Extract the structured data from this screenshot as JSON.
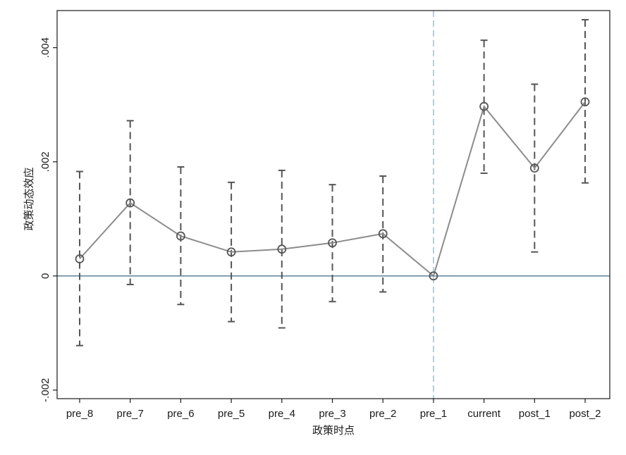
{
  "chart_data": {
    "type": "line",
    "title": "",
    "xlabel": "政策时点",
    "ylabel": "政策动态效应",
    "categories": [
      "pre_8",
      "pre_7",
      "pre_6",
      "pre_5",
      "pre_4",
      "pre_3",
      "pre_2",
      "pre_1",
      "current",
      "post_1",
      "post_2"
    ],
    "series": [
      {
        "values": [
          0.0003,
          0.00128,
          0.0007,
          0.00042,
          0.00047,
          0.00058,
          0.00074,
          0.0,
          0.00297,
          0.00189,
          0.00305
        ],
        "ci_lower": [
          -0.00122,
          -0.00015,
          -0.0005,
          -0.0008,
          -0.00091,
          -0.00045,
          -0.00028,
          0.0,
          0.0018,
          0.00042,
          0.00163
        ],
        "ci_upper": [
          0.00183,
          0.00272,
          0.00191,
          0.00164,
          0.00185,
          0.0016,
          0.00175,
          0.0,
          0.00413,
          0.00336,
          0.00449
        ]
      }
    ],
    "ylim": [
      -0.00215,
      0.00465
    ],
    "yticks": [
      -0.002,
      0,
      0.002,
      0.004
    ],
    "ytick_labels": [
      "-.002",
      "0",
      ".002",
      ".004"
    ],
    "reference_hline": 0,
    "reference_vline_category": "pre_1",
    "grid": false,
    "legend": "none",
    "colors": {
      "line": "#8c8c8c",
      "marker": "#555555",
      "ci": "#555555",
      "zero_line": "#6d8fa6",
      "vline": "#8fb3c2",
      "frame": "#1a1a1a"
    }
  }
}
